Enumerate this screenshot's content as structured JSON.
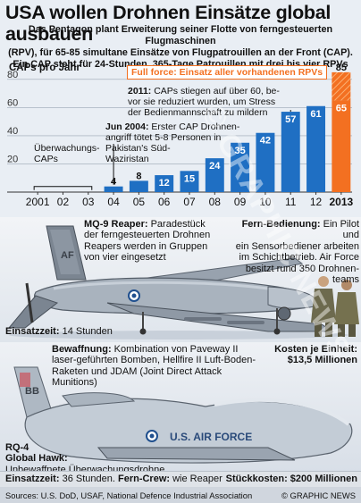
{
  "headline": "USA wollen Drohnen Einsätze global ausbauen",
  "subhead_lines": [
    "Das Pentagon plant Erweiterung seiner Flotte von ferngesteuerten Flugmaschinen",
    "(RPV), für 65-85 simultane Einsätze von Flugpatrouillen an der Front (CAP).",
    "Ein CAP steht für 24-Stunden, 365-Tage Patrouillen mit drei bis vier RPVs"
  ],
  "chart_data": {
    "type": "bar",
    "ylabel": "CAPs pro Jahr",
    "ylim": [
      0,
      90
    ],
    "yticks": [
      20,
      40,
      60,
      80
    ],
    "x_tick_labels": [
      "2001",
      "02",
      "03",
      "04",
      "05",
      "06",
      "07",
      "08",
      "09",
      "10",
      "11",
      "12",
      "2013"
    ],
    "categories": [
      "2004",
      "2005",
      "2006",
      "2007",
      "2008",
      "2009",
      "2010",
      "2011",
      "2012",
      "2013"
    ],
    "values": [
      4,
      8,
      12,
      15,
      24,
      35,
      42,
      57,
      61,
      65
    ],
    "value_labels": [
      "4",
      "8",
      "12",
      "15",
      "24",
      "35",
      "42",
      "57",
      "61",
      "65"
    ],
    "target_2013": {
      "value": 85,
      "label": "85",
      "legend": "Full force: Einsatz aller vorhandenen RPVs"
    },
    "surveillance_bracket": {
      "from": "2001",
      "to": "03",
      "label_lines": [
        "Überwachungs-",
        "CAPs"
      ]
    },
    "colors": {
      "bar": "#1f6fc3",
      "target": "#f37021",
      "grid": "#9aa6b3"
    }
  },
  "annotations": {
    "a2011": {
      "year": "2011:",
      "lines": [
        "CAPs stiegen auf über 60, be-",
        "vor sie reduziert wurden, um Stress",
        "der Bedienmannschaft zu mildern"
      ]
    },
    "a2004": {
      "year": "Jun 2004:",
      "first": "Erster CAP Drohnen-",
      "lines": [
        "angriff tötet 5-8 Personen in",
        "Pakistan's Süd-",
        "Waziristan"
      ]
    }
  },
  "reaper": {
    "name": "MQ-9 Reaper:",
    "desc_first": "Paradestück",
    "desc_lines": [
      "der ferngesteuerten Drohnen",
      "Reapers werden in Gruppen",
      "von vier eingesetzt"
    ],
    "tail_text": "AF",
    "endurance_label": "Einsatzzeit:",
    "endurance_value": "14 Stunden"
  },
  "remote": {
    "label": "Fern-Bedienung:",
    "first": "Ein Pilot und",
    "lines": [
      "ein Sensorbediener arbeiten",
      "im Schichtbetrieb. Air Force",
      "besitzt rund 350 Drohnen-",
      "teams"
    ]
  },
  "armament": {
    "label": "Bewaffnung:",
    "first": "Kombination von Paveway II",
    "lines": [
      "laser-geführten Bomben, Hellfire II Luft-Boden-",
      "Raketen und JDAM (Joint Direct Attack Munitions)"
    ]
  },
  "unit_cost": {
    "label": "Kosten je Einheit:",
    "value": "$13,5 Millionen"
  },
  "global_hawk": {
    "name_lines": [
      "RQ-4",
      "Global Hawk:"
    ],
    "desc": "Unbewaffnete Überwachungsdrohne",
    "fuselage_text": "U.S. AIR FORCE",
    "tail_text": "BB",
    "endurance_label": "Einsatzzeit:",
    "endurance_value": "36 Stunden.",
    "crew_label": "Fern-Crew:",
    "crew_value": "wie Reaper",
    "cost_label": "Stückkosten:",
    "cost_value": "$200 Millionen"
  },
  "footer": {
    "sources": "Sources: U.S. DoD, USAF, National Defence Industrial Association",
    "credit": "© GRAPHIC NEWS"
  },
  "watermark": "© GRAPHIC NEWS"
}
